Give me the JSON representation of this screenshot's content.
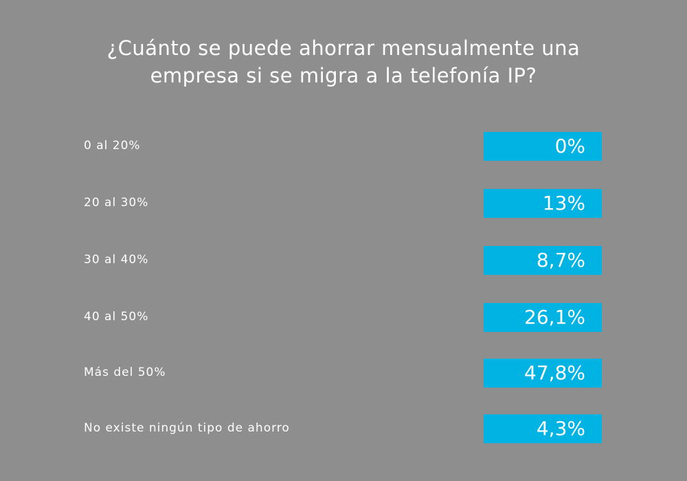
{
  "chart_data": {
    "type": "table",
    "title_lines": [
      "¿Cuánto se puede ahorrar mensualmente una",
      "empresa si se migra a la telefonía IP?"
    ],
    "categories": [
      "0 al 20%",
      "20 al 30%",
      "30 al 40%",
      "40 al 50%",
      "Más del 50%",
      "No existe ningún tipo de ahorro"
    ],
    "value_labels": [
      "0%",
      "13%",
      "8,7%",
      "26,1%",
      "47,8%",
      "4,3%"
    ],
    "values": [
      0,
      13,
      8.7,
      26.1,
      47.8,
      4.3
    ],
    "colors": {
      "background": "#8e8e8e",
      "box": "#00b3e3",
      "text": "#ffffff"
    }
  }
}
